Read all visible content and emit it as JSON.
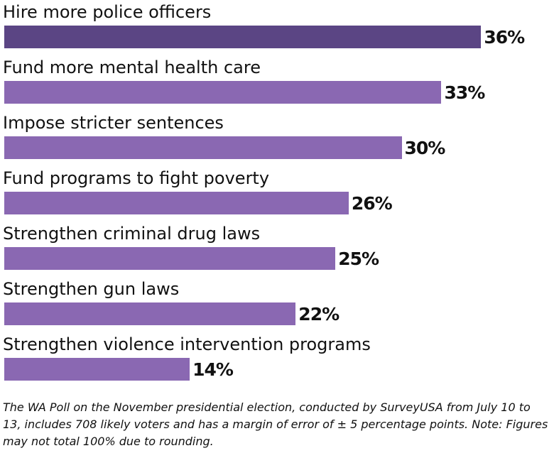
{
  "chart_data": {
    "type": "bar",
    "orientation": "horizontal",
    "categories": [
      "Hire more police officers",
      "Fund more mental health care",
      "Impose stricter sentences",
      "Fund programs to fight poverty",
      "Strengthen criminal drug laws",
      "Strengthen gun laws",
      "Strengthen violence intervention programs"
    ],
    "values": [
      36,
      33,
      30,
      26,
      25,
      22,
      14
    ],
    "value_labels": [
      "36%",
      "33%",
      "30%",
      "26%",
      "25%",
      "22%",
      "14%"
    ],
    "unit": "%",
    "grid": false,
    "legend": "none",
    "colors": {
      "highlight_bar": "#5b4584",
      "bar": "#8a68b2",
      "text": "#111111"
    }
  },
  "note": {
    "text": "The WA Poll on the November presidential election, conducted by SurveyUSA from July 10 to 13, includes 708 likely voters and has a margin of error of ± 5 percentage points. Note: Figures may not total 100% due to rounding."
  }
}
